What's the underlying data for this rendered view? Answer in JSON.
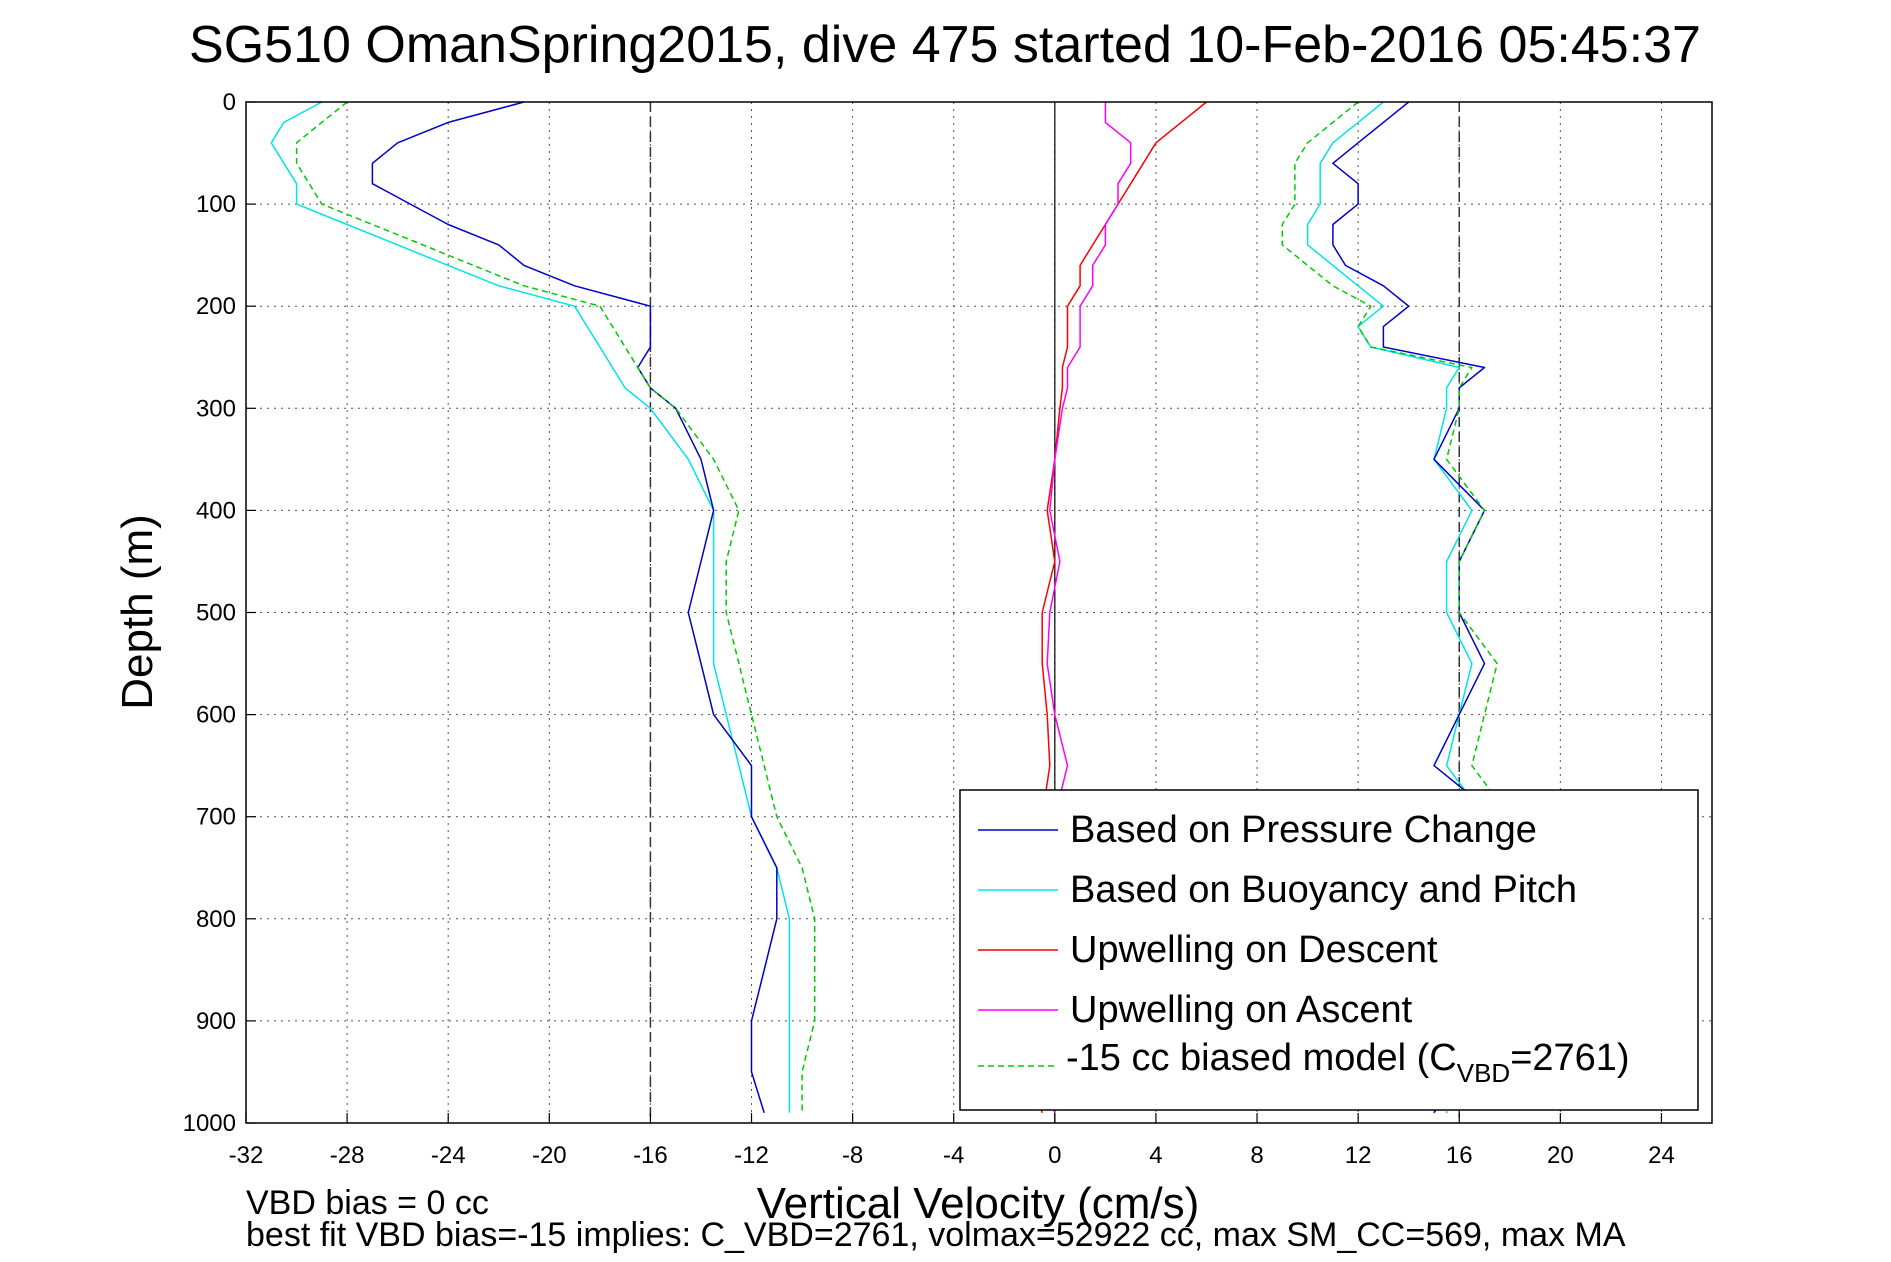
{
  "chart_data": {
    "type": "line",
    "title": "SG510 OmanSpring2015, dive 475 started 10-Feb-2016 05:45:37",
    "xlabel": "Vertical Velocity (cm/s)",
    "ylabel": "Depth (m)",
    "xlim": [
      -32,
      26
    ],
    "ylim": [
      0,
      1000
    ],
    "y_reversed": true,
    "grid": true,
    "x_ticks": [
      "-32",
      "-28",
      "-24",
      "-20",
      "-16",
      "-12",
      "-8",
      "-4",
      "0",
      "4",
      "8",
      "12",
      "16",
      "20",
      "24"
    ],
    "y_ticks": [
      "0",
      "100",
      "200",
      "300",
      "400",
      "500",
      "600",
      "700",
      "800",
      "900",
      "1000"
    ],
    "x_tick_values": [
      -32,
      -28,
      -24,
      -20,
      -16,
      -12,
      -8,
      -4,
      0,
      4,
      8,
      12,
      16,
      20,
      24
    ],
    "y_tick_values": [
      0,
      100,
      200,
      300,
      400,
      500,
      600,
      700,
      800,
      900,
      1000
    ],
    "reference_lines_x": [
      -16,
      0,
      16
    ],
    "legend_position": "bottom-right",
    "legend": [
      {
        "label": "Based on Pressure Change",
        "color": "#0000cc",
        "dash": "solid"
      },
      {
        "label": "Based on Buoyancy and Pitch",
        "color": "#00e5e5",
        "dash": "solid"
      },
      {
        "label": "Upwelling on Descent",
        "color": "#ff0000",
        "dash": "solid"
      },
      {
        "label": "Upwelling on Ascent",
        "color": "#ff00ff",
        "dash": "solid"
      },
      {
        "label_main": "-15 cc biased model (C",
        "label_sub": "VBD",
        "label_tail": "=2761)",
        "color": "#00cc00",
        "dash": "dashed"
      }
    ],
    "notes": [
      "VBD bias = 0 cc",
      "best fit VBD bias=-15 implies: C_VBD=2761, volmax=52922 cc, max SM_CC=569, max MA"
    ],
    "series": [
      {
        "name": "Based on Pressure Change",
        "segment": "descent",
        "color": "#0000cc",
        "depth": [
          0,
          20,
          40,
          60,
          80,
          100,
          120,
          140,
          160,
          180,
          200,
          220,
          240,
          260,
          280,
          300,
          350,
          400,
          450,
          500,
          550,
          600,
          650,
          700,
          750,
          800,
          850,
          900,
          950,
          990
        ],
        "velocity": [
          -21,
          -24,
          -26,
          -27,
          -27,
          -25.5,
          -24,
          -22,
          -21,
          -19,
          -16,
          -16,
          -16,
          -16.5,
          -16,
          -15,
          -14,
          -13.5,
          -14,
          -14.5,
          -14,
          -13.5,
          -12,
          -12,
          -11,
          -11,
          -11.5,
          -12,
          -12,
          -11.5
        ]
      },
      {
        "name": "Based on Buoyancy and Pitch",
        "segment": "descent",
        "color": "#00e5e5",
        "depth": [
          0,
          20,
          40,
          60,
          80,
          100,
          120,
          140,
          160,
          180,
          200,
          220,
          240,
          260,
          280,
          300,
          350,
          400,
          450,
          500,
          550,
          600,
          650,
          700,
          750,
          800,
          850,
          900,
          950,
          990
        ],
        "velocity": [
          -29,
          -30.5,
          -31,
          -30.5,
          -30,
          -30,
          -28,
          -26,
          -24,
          -22,
          -19,
          -18.5,
          -18,
          -17.5,
          -17,
          -16,
          -14.5,
          -13.5,
          -13.5,
          -13.5,
          -13.5,
          -13,
          -12.5,
          -12,
          -11,
          -10.5,
          -10.5,
          -10.5,
          -10.5,
          -10.5
        ]
      },
      {
        "name": "-15 cc biased model (CVBD=2761)",
        "segment": "descent",
        "color": "#00cc00",
        "depth": [
          0,
          20,
          40,
          60,
          80,
          100,
          120,
          140,
          160,
          180,
          200,
          220,
          240,
          260,
          280,
          300,
          350,
          400,
          450,
          500,
          550,
          600,
          650,
          700,
          750,
          800,
          850,
          900,
          950,
          990
        ],
        "velocity": [
          -28,
          -29,
          -30,
          -30,
          -29.5,
          -29,
          -27,
          -25,
          -23,
          -21,
          -18,
          -17.5,
          -17,
          -16.5,
          -16,
          -15,
          -13.5,
          -12.5,
          -13,
          -13,
          -12.5,
          -12,
          -11.5,
          -11,
          -10,
          -9.5,
          -9.5,
          -9.5,
          -10,
          -10
        ]
      },
      {
        "name": "Based on Pressure Change",
        "segment": "ascent",
        "color": "#0000cc",
        "depth": [
          0,
          20,
          40,
          60,
          80,
          100,
          120,
          140,
          160,
          180,
          200,
          220,
          240,
          260,
          280,
          300,
          350,
          400,
          450,
          500,
          550,
          600,
          650,
          700,
          750,
          800,
          850,
          900,
          950,
          990
        ],
        "velocity": [
          14,
          13,
          12,
          11,
          12,
          12,
          11,
          11,
          11.5,
          13,
          14,
          13,
          13,
          17,
          16,
          16,
          15,
          17,
          16,
          16,
          17,
          16,
          15,
          17.5,
          17.5,
          16.5,
          16,
          16,
          16,
          15
        ]
      },
      {
        "name": "Based on Buoyancy and Pitch",
        "segment": "ascent",
        "color": "#00e5e5",
        "depth": [
          0,
          20,
          40,
          60,
          80,
          100,
          120,
          140,
          160,
          180,
          200,
          220,
          240,
          260,
          280,
          300,
          350,
          400,
          450,
          500,
          550,
          600,
          650,
          700,
          750,
          800,
          850,
          900,
          950,
          990
        ],
        "velocity": [
          13,
          12,
          11,
          10.5,
          10.5,
          10.5,
          10,
          10,
          11,
          12,
          13,
          12,
          12.5,
          16,
          15.5,
          15.5,
          15,
          16.5,
          15.5,
          15.5,
          16.5,
          16,
          15.5,
          17,
          17,
          16.5,
          16,
          16,
          15.5,
          15
        ]
      },
      {
        "name": "-15 cc biased model (CVBD=2761)",
        "segment": "ascent",
        "color": "#00cc00",
        "depth": [
          0,
          20,
          40,
          60,
          80,
          100,
          120,
          140,
          160,
          180,
          200,
          220,
          240,
          260,
          280,
          300,
          350,
          400,
          450,
          500,
          550,
          600,
          650,
          700,
          750,
          800,
          850,
          900,
          950,
          990
        ],
        "velocity": [
          12,
          11,
          10,
          9.5,
          9.5,
          9.5,
          9,
          9,
          10,
          11,
          12.5,
          12,
          12.5,
          16.5,
          16,
          16,
          15.5,
          17,
          16,
          16,
          17.5,
          17,
          16.5,
          18,
          18,
          17,
          16.5,
          16.5,
          16,
          15.5
        ]
      },
      {
        "name": "Upwelling on Descent",
        "segment": "descent",
        "color": "#ff0000",
        "depth": [
          0,
          20,
          40,
          60,
          80,
          100,
          120,
          140,
          160,
          180,
          200,
          220,
          240,
          260,
          280,
          300,
          350,
          400,
          450,
          500,
          550,
          600,
          650,
          700,
          750,
          800,
          850,
          900,
          950,
          990
        ],
        "velocity": [
          6,
          5,
          4,
          3.5,
          3,
          2.5,
          2,
          1.5,
          1,
          1,
          0.5,
          0.5,
          0.5,
          0.3,
          0.3,
          0.2,
          0,
          -0.3,
          0,
          -0.5,
          -0.5,
          -0.3,
          -0.2,
          -0.5,
          -0.5,
          -0.8,
          -1,
          -0.5,
          -1,
          -0.5
        ]
      },
      {
        "name": "Upwelling on Ascent",
        "segment": "ascent",
        "color": "#ff00ff",
        "depth": [
          0,
          20,
          40,
          60,
          80,
          100,
          120,
          140,
          160,
          180,
          200,
          220,
          240,
          260,
          280,
          300,
          350,
          400,
          450,
          500,
          550,
          600,
          650,
          700,
          750,
          800,
          850,
          900,
          950,
          990
        ],
        "velocity": [
          2,
          2,
          3,
          3,
          2.5,
          2.5,
          2,
          2,
          1.5,
          1.5,
          1,
          1,
          1,
          0.5,
          0.5,
          0.3,
          0,
          -0.2,
          0.2,
          -0.2,
          -0.3,
          0,
          0.5,
          0,
          -0.3,
          -0.5,
          -0.5,
          -0.3,
          -0.5,
          0
        ]
      }
    ]
  }
}
